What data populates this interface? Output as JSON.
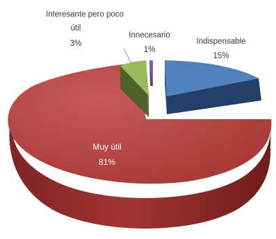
{
  "chart_data": {
    "type": "pie",
    "title": "",
    "style": "3d-exploded",
    "legend": "none",
    "slices": [
      {
        "label": "Indispensable",
        "percent_label": "15%",
        "value": 15,
        "color": "#4f81bd"
      },
      {
        "label": "Muy útil",
        "percent_label": "81%",
        "value": 81,
        "color": "#c0504d"
      },
      {
        "label": "Interesante pero poco útil",
        "label_lines": [
          "Interesante pero poco",
          "útil"
        ],
        "percent_label": "3%",
        "value": 3,
        "color": "#9bbb59"
      },
      {
        "label": "Innecesario",
        "percent_label": "1%",
        "value": 1,
        "color": "#8064a2"
      }
    ]
  }
}
